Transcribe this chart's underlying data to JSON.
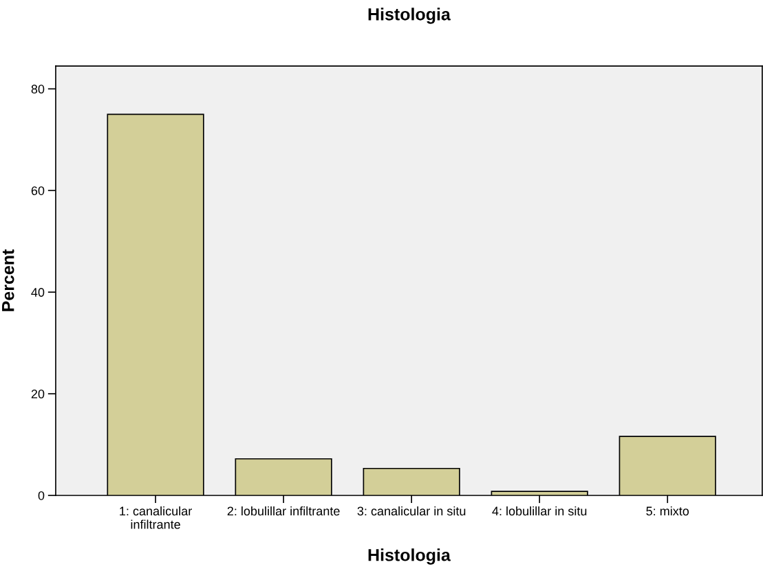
{
  "chart_data": {
    "type": "bar",
    "title": "Histologia",
    "xlabel": "Histologia",
    "ylabel": "Percent",
    "categories": [
      "1: canalicular\ninfiltrante",
      "2: lobulillar infiltrante",
      "3: canalicular in situ",
      "4: lobulillar in situ",
      "5: mixto"
    ],
    "values": [
      75.0,
      7.2,
      5.3,
      0.8,
      11.6
    ],
    "color": "#d3cf98",
    "ylim": [
      0,
      84.5
    ],
    "yticks": [
      0,
      20,
      40,
      60,
      80
    ],
    "grid": false,
    "legend": false
  }
}
